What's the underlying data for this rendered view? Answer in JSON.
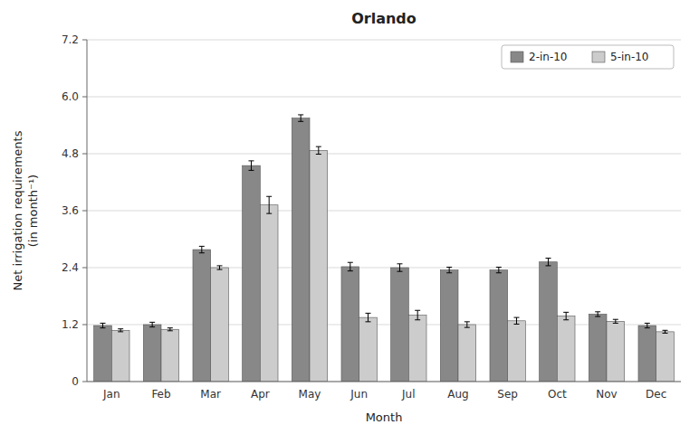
{
  "chart_data": {
    "type": "bar",
    "title": "Orlando",
    "xlabel": "Month",
    "ylabel": "Net irrigation requirements\n(in month⁻¹)",
    "categories": [
      "Jan",
      "Feb",
      "Mar",
      "Apr",
      "May",
      "Jun",
      "Jul",
      "Aug",
      "Sep",
      "Oct",
      "Nov",
      "Dec"
    ],
    "series": [
      {
        "name": "2-in-10",
        "color": "#888888",
        "values": [
          1.18,
          1.2,
          2.78,
          4.55,
          5.55,
          2.42,
          2.4,
          2.35,
          2.35,
          2.52,
          1.42,
          1.18
        ],
        "errors": [
          0.05,
          0.05,
          0.07,
          0.1,
          0.07,
          0.09,
          0.08,
          0.06,
          0.06,
          0.08,
          0.05,
          0.05
        ]
      },
      {
        "name": "5-in-10",
        "color": "#cccccc",
        "values": [
          1.08,
          1.1,
          2.4,
          3.72,
          4.87,
          1.35,
          1.4,
          1.2,
          1.28,
          1.38,
          1.27,
          1.05
        ],
        "errors": [
          0.03,
          0.03,
          0.04,
          0.18,
          0.08,
          0.09,
          0.1,
          0.06,
          0.07,
          0.08,
          0.04,
          0.03
        ]
      }
    ],
    "ylim": [
      0,
      7.2
    ],
    "yticks": [
      0,
      1.2,
      2.4,
      3.6,
      4.8,
      {
        "value": 6.0,
        "label": "6.0"
      },
      7.2
    ],
    "grid": true,
    "legend": "upper right"
  }
}
